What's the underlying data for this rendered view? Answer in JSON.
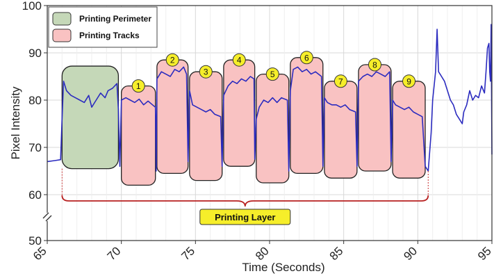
{
  "chart_data": {
    "type": "line",
    "xlabel": "Time (Seconds)",
    "ylabel": "Pixel Intensity",
    "xlim": [
      65,
      95
    ],
    "ylim": [
      50,
      100
    ],
    "x_ticks": [
      "65",
      "70",
      "75",
      "80",
      "85",
      "90",
      "95"
    ],
    "y_ticks": [
      "50",
      "60",
      "70",
      "80",
      "90",
      "100"
    ],
    "y_axis_break": true,
    "grid": true,
    "legend_position": "top-left",
    "legend": [
      {
        "label": "Printing Perimeter",
        "color": "#c5d8b8"
      },
      {
        "label": "Printing Tracks",
        "color": "#f9c2c2"
      }
    ],
    "perimeter": {
      "x": [
        66.0,
        69.8
      ],
      "y": [
        65.5,
        87.2
      ]
    },
    "tracks": [
      {
        "label": "1",
        "x": [
          70.0,
          72.3
        ],
        "y": [
          62.0,
          83.0
        ]
      },
      {
        "label": "2",
        "x": [
          72.4,
          74.5
        ],
        "y": [
          64.5,
          88.5
        ]
      },
      {
        "label": "3",
        "x": [
          74.6,
          76.8
        ],
        "y": [
          63.0,
          86.0
        ]
      },
      {
        "label": "4",
        "x": [
          76.9,
          79.0
        ],
        "y": [
          66.0,
          88.5
        ]
      },
      {
        "label": "5",
        "x": [
          79.1,
          81.3
        ],
        "y": [
          62.5,
          85.5
        ]
      },
      {
        "label": "6",
        "x": [
          81.4,
          83.6
        ],
        "y": [
          64.5,
          89.0
        ]
      },
      {
        "label": "7",
        "x": [
          83.7,
          85.9
        ],
        "y": [
          63.5,
          84.0
        ]
      },
      {
        "label": "8",
        "x": [
          86.0,
          88.2
        ],
        "y": [
          65.0,
          87.5
        ]
      },
      {
        "label": "9",
        "x": [
          88.3,
          90.5
        ],
        "y": [
          63.5,
          84.0
        ]
      }
    ],
    "bracket": {
      "x": [
        66.0,
        90.7
      ],
      "label": "Printing Layer"
    },
    "series": [
      {
        "color": "#2b2bbf",
        "points": [
          [
            65.0,
            67.0
          ],
          [
            65.5,
            67.2
          ],
          [
            65.9,
            67.4
          ],
          [
            66.0,
            76.0
          ],
          [
            66.1,
            84.0
          ],
          [
            66.3,
            82.0
          ],
          [
            66.6,
            81.0
          ],
          [
            66.9,
            80.5
          ],
          [
            67.2,
            80.0
          ],
          [
            67.5,
            79.5
          ],
          [
            67.8,
            81.0
          ],
          [
            68.0,
            78.5
          ],
          [
            68.3,
            80.0
          ],
          [
            68.6,
            81.5
          ],
          [
            68.9,
            80.5
          ],
          [
            69.1,
            82.0
          ],
          [
            69.4,
            82.5
          ],
          [
            69.7,
            83.5
          ],
          [
            69.8,
            78.0
          ],
          [
            69.9,
            66.0
          ],
          [
            70.0,
            80.0
          ],
          [
            70.3,
            80.5
          ],
          [
            70.6,
            80.0
          ],
          [
            70.9,
            79.5
          ],
          [
            71.2,
            80.2
          ],
          [
            71.5,
            79.0
          ],
          [
            71.8,
            79.8
          ],
          [
            72.1,
            79.0
          ],
          [
            72.3,
            78.5
          ],
          [
            72.35,
            65.0
          ],
          [
            72.4,
            84.5
          ],
          [
            72.7,
            86.0
          ],
          [
            73.0,
            85.5
          ],
          [
            73.3,
            85.0
          ],
          [
            73.6,
            86.5
          ],
          [
            73.9,
            86.0
          ],
          [
            74.2,
            87.0
          ],
          [
            74.4,
            85.5
          ],
          [
            74.5,
            67.0
          ],
          [
            74.6,
            82.0
          ],
          [
            74.8,
            79.0
          ],
          [
            75.1,
            78.5
          ],
          [
            75.4,
            78.0
          ],
          [
            75.7,
            77.5
          ],
          [
            76.0,
            78.0
          ],
          [
            76.3,
            77.0
          ],
          [
            76.7,
            76.5
          ],
          [
            76.8,
            66.0
          ],
          [
            76.9,
            81.0
          ],
          [
            77.2,
            83.0
          ],
          [
            77.5,
            84.0
          ],
          [
            77.8,
            83.5
          ],
          [
            78.1,
            84.5
          ],
          [
            78.4,
            84.0
          ],
          [
            78.7,
            85.0
          ],
          [
            78.95,
            84.5
          ],
          [
            79.0,
            67.5
          ],
          [
            79.1,
            76.0
          ],
          [
            79.3,
            78.5
          ],
          [
            79.6,
            80.0
          ],
          [
            79.9,
            79.5
          ],
          [
            80.2,
            80.5
          ],
          [
            80.5,
            79.5
          ],
          [
            80.8,
            80.5
          ],
          [
            81.2,
            80.0
          ],
          [
            81.3,
            65.0
          ],
          [
            81.4,
            82.0
          ],
          [
            81.6,
            86.5
          ],
          [
            81.9,
            87.0
          ],
          [
            82.2,
            86.0
          ],
          [
            82.5,
            86.5
          ],
          [
            82.8,
            85.5
          ],
          [
            83.1,
            86.0
          ],
          [
            83.5,
            85.0
          ],
          [
            83.6,
            66.0
          ],
          [
            83.7,
            80.5
          ],
          [
            83.9,
            79.5
          ],
          [
            84.2,
            79.0
          ],
          [
            84.5,
            79.0
          ],
          [
            84.8,
            78.5
          ],
          [
            85.1,
            79.0
          ],
          [
            85.4,
            78.0
          ],
          [
            85.8,
            77.5
          ],
          [
            85.9,
            66.0
          ],
          [
            86.0,
            84.0
          ],
          [
            86.3,
            85.0
          ],
          [
            86.6,
            85.5
          ],
          [
            86.9,
            85.0
          ],
          [
            87.2,
            86.0
          ],
          [
            87.5,
            85.5
          ],
          [
            87.8,
            85.0
          ],
          [
            88.1,
            86.0
          ],
          [
            88.2,
            67.0
          ],
          [
            88.3,
            80.0
          ],
          [
            88.5,
            79.0
          ],
          [
            88.8,
            78.5
          ],
          [
            89.1,
            78.0
          ],
          [
            89.4,
            78.5
          ],
          [
            89.7,
            77.5
          ],
          [
            90.0,
            77.0
          ],
          [
            90.3,
            76.5
          ],
          [
            90.5,
            66.0
          ],
          [
            90.7,
            65.0
          ],
          [
            90.9,
            73.0
          ],
          [
            91.0,
            80.0
          ],
          [
            91.2,
            86.0
          ],
          [
            91.3,
            95.0
          ],
          [
            91.4,
            86.0
          ],
          [
            91.6,
            85.0
          ],
          [
            91.8,
            84.0
          ],
          [
            92.0,
            82.0
          ],
          [
            92.2,
            80.0
          ],
          [
            92.4,
            79.0
          ],
          [
            92.6,
            77.0
          ],
          [
            92.8,
            76.0
          ],
          [
            93.0,
            75.0
          ],
          [
            93.1,
            77.5
          ],
          [
            93.3,
            79.0
          ],
          [
            93.5,
            82.0
          ],
          [
            93.7,
            80.0
          ],
          [
            93.9,
            81.0
          ],
          [
            94.1,
            80.5
          ],
          [
            94.3,
            83.0
          ],
          [
            94.5,
            81.5
          ],
          [
            94.6,
            86.0
          ],
          [
            94.7,
            91.0
          ],
          [
            94.8,
            92.0
          ],
          [
            94.85,
            86.0
          ],
          [
            94.9,
            84.0
          ],
          [
            94.95,
            96.0
          ],
          [
            95.0,
            68.5
          ]
        ]
      }
    ]
  }
}
